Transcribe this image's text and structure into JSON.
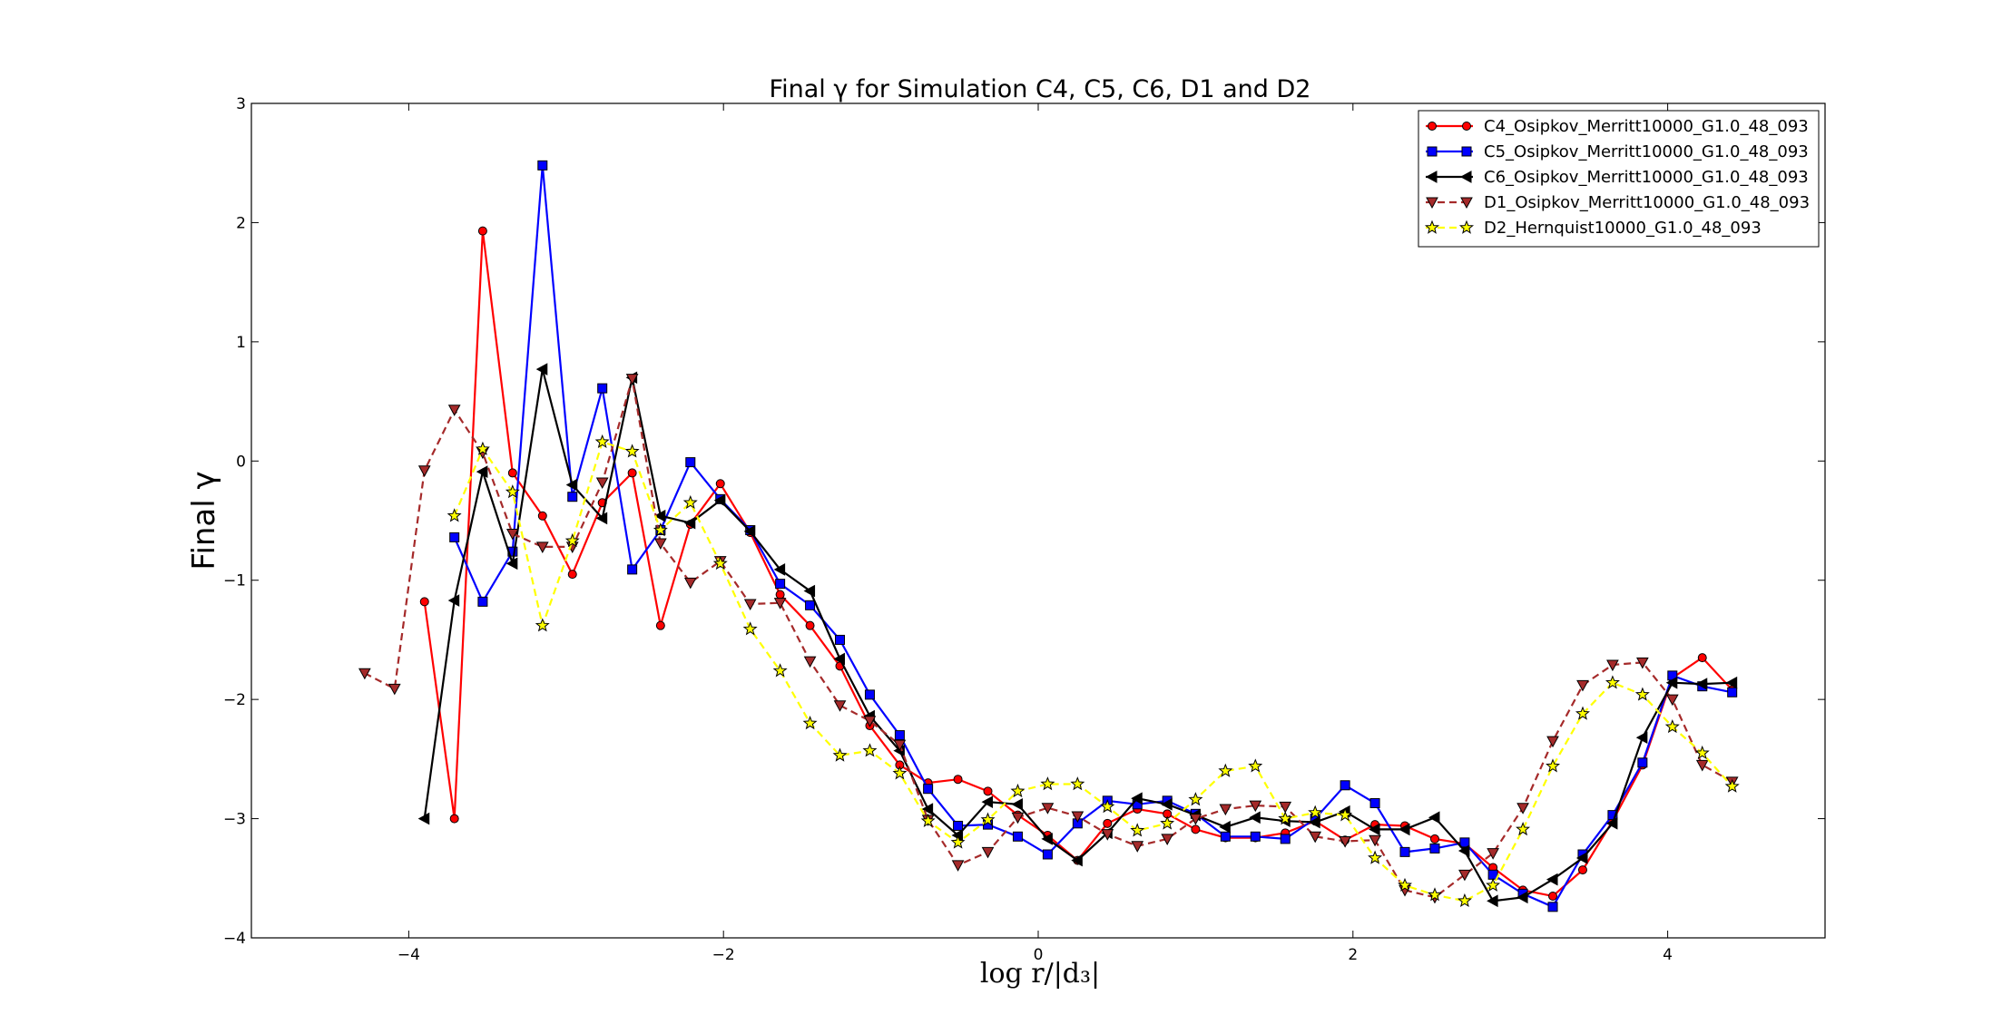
{
  "chart_data": {
    "type": "line",
    "title": "Final γ for Simulation C4, C5, C6, D1 and D2",
    "xlabel": "log r/|d₃|",
    "ylabel": "Final γ",
    "xlim": [
      -5,
      5
    ],
    "ylim": [
      -4,
      3
    ],
    "xticks": [
      -4,
      -2,
      0,
      2,
      4
    ],
    "yticks": [
      -4,
      -3,
      -2,
      -1,
      0,
      1,
      2,
      3
    ],
    "xtick_labels": [
      "−4",
      "−2",
      "0",
      "2",
      "4"
    ],
    "ytick_labels": [
      "−4",
      "−3",
      "−2",
      "−1",
      "0",
      "1",
      "2",
      "3"
    ],
    "legend_position": "top-right",
    "grid": false,
    "series": [
      {
        "name": "C4_Osipkov_Merritt10000_G1.0_48_093",
        "color": "#ff0000",
        "marker": "circle",
        "dash": "solid",
        "x": [
          -3.9,
          -3.71,
          -3.53,
          -3.34,
          -3.15,
          -2.96,
          -2.77,
          -2.58,
          -2.4,
          -2.21,
          -2.02,
          -1.83,
          -1.64,
          -1.45,
          -1.26,
          -1.07,
          -0.88,
          -0.7,
          -0.51,
          -0.32,
          -0.13,
          0.06,
          0.25,
          0.44,
          0.63,
          0.82,
          1.0,
          1.19,
          1.38,
          1.57,
          1.76,
          1.95,
          2.14,
          2.33,
          2.52,
          2.71,
          2.89,
          3.08,
          3.27,
          3.46,
          3.65,
          3.84,
          4.03,
          4.22,
          4.41
        ],
        "y": [
          -1.18,
          -3.0,
          1.93,
          -0.1,
          -0.46,
          -0.95,
          -0.35,
          -0.1,
          -1.38,
          -0.53,
          -0.19,
          -0.6,
          -1.12,
          -1.38,
          -1.72,
          -2.22,
          -2.55,
          -2.7,
          -2.67,
          -2.77,
          -2.97,
          -3.14,
          -3.35,
          -3.04,
          -2.92,
          -2.96,
          -3.09,
          -3.16,
          -3.16,
          -3.12,
          -3.02,
          -3.18,
          -3.05,
          -3.06,
          -3.17,
          -3.21,
          -3.41,
          -3.6,
          -3.65,
          -3.43,
          -3.02,
          -2.55,
          -1.82,
          -1.65,
          -1.92
        ]
      },
      {
        "name": "C5_Osipkov_Merritt10000_G1.0_48_093",
        "color": "#0000ff",
        "marker": "square",
        "dash": "solid",
        "x": [
          -3.71,
          -3.53,
          -3.34,
          -3.15,
          -2.96,
          -2.77,
          -2.58,
          -2.4,
          -2.21,
          -2.02,
          -1.83,
          -1.64,
          -1.45,
          -1.26,
          -1.07,
          -0.88,
          -0.7,
          -0.51,
          -0.32,
          -0.13,
          0.06,
          0.25,
          0.44,
          0.63,
          0.82,
          1.0,
          1.19,
          1.38,
          1.57,
          1.76,
          1.95,
          2.14,
          2.33,
          2.52,
          2.71,
          2.89,
          3.08,
          3.27,
          3.46,
          3.65,
          3.84,
          4.03,
          4.22,
          4.41
        ],
        "y": [
          -0.64,
          -1.18,
          -0.76,
          2.48,
          -0.3,
          0.61,
          -0.91,
          -0.58,
          -0.01,
          -0.32,
          -0.58,
          -1.03,
          -1.21,
          -1.5,
          -1.96,
          -2.3,
          -2.75,
          -3.06,
          -3.05,
          -3.15,
          -3.3,
          -3.04,
          -2.85,
          -2.88,
          -2.85,
          -2.96,
          -3.15,
          -3.15,
          -3.17,
          -3.0,
          -2.72,
          -2.87,
          -3.28,
          -3.25,
          -3.2,
          -3.47,
          -3.63,
          -3.74,
          -3.3,
          -2.97,
          -2.53,
          -1.8,
          -1.89,
          -1.94
        ]
      },
      {
        "name": "C6_Osipkov_Merritt10000_G1.0_48_093",
        "color": "#000000",
        "marker": "triangle-left",
        "dash": "solid",
        "x": [
          -3.9,
          -3.71,
          -3.53,
          -3.34,
          -3.15,
          -2.96,
          -2.77,
          -2.58,
          -2.4,
          -2.21,
          -2.02,
          -1.83,
          -1.64,
          -1.45,
          -1.26,
          -1.07,
          -0.88,
          -0.7,
          -0.51,
          -0.32,
          -0.13,
          0.06,
          0.25,
          0.44,
          0.63,
          0.82,
          1.0,
          1.19,
          1.38,
          1.57,
          1.76,
          1.95,
          2.14,
          2.33,
          2.52,
          2.71,
          2.89,
          3.08,
          3.27,
          3.46,
          3.65,
          3.84,
          4.03,
          4.22,
          4.41
        ],
        "y": [
          -3.0,
          -1.17,
          -0.09,
          -0.86,
          0.77,
          -0.2,
          -0.48,
          0.7,
          -0.46,
          -0.52,
          -0.33,
          -0.59,
          -0.91,
          -1.09,
          -1.66,
          -2.14,
          -2.43,
          -2.92,
          -3.14,
          -2.86,
          -2.88,
          -3.17,
          -3.35,
          -3.12,
          -2.83,
          -2.88,
          -2.97,
          -3.07,
          -2.99,
          -3.02,
          -3.03,
          -2.94,
          -3.09,
          -3.09,
          -2.99,
          -3.27,
          -3.69,
          -3.66,
          -3.51,
          -3.33,
          -3.04,
          -2.32,
          -1.86,
          -1.87,
          -1.86
        ]
      },
      {
        "name": "D1_Osipkov_Merritt10000_G1.0_48_093",
        "color": "#a52a2a",
        "marker": "triangle-down",
        "dash": "dashed",
        "x": [
          -4.28,
          -4.09,
          -3.9,
          -3.71,
          -3.53,
          -3.34,
          -3.15,
          -2.96,
          -2.77,
          -2.58,
          -2.4,
          -2.21,
          -2.02,
          -1.83,
          -1.64,
          -1.45,
          -1.26,
          -1.07,
          -0.88,
          -0.7,
          -0.51,
          -0.32,
          -0.13,
          0.06,
          0.25,
          0.44,
          0.63,
          0.82,
          1.0,
          1.19,
          1.38,
          1.57,
          1.76,
          1.95,
          2.14,
          2.33,
          2.52,
          2.71,
          2.89,
          3.08,
          3.27,
          3.46,
          3.65,
          3.84,
          4.03,
          4.22,
          4.41
        ],
        "y": [
          -1.78,
          -1.91,
          -0.08,
          0.43,
          0.07,
          -0.61,
          -0.72,
          -0.72,
          -0.18,
          0.69,
          -0.69,
          -1.02,
          -0.84,
          -1.2,
          -1.19,
          -1.68,
          -2.05,
          -2.18,
          -2.38,
          -3.01,
          -3.39,
          -3.28,
          -2.99,
          -2.91,
          -2.98,
          -3.13,
          -3.23,
          -3.17,
          -3.0,
          -2.92,
          -2.89,
          -2.9,
          -3.15,
          -3.19,
          -3.18,
          -3.6,
          -3.66,
          -3.47,
          -3.29,
          -2.91,
          -2.35,
          -1.88,
          -1.71,
          -1.69,
          -2.0,
          -2.55,
          -2.69
        ]
      },
      {
        "name": "D2_Hernquist10000_G1.0_48_093",
        "color": "#ffff00",
        "marker": "star",
        "dash": "dashed",
        "x": [
          -3.71,
          -3.53,
          -3.34,
          -3.15,
          -2.96,
          -2.77,
          -2.58,
          -2.4,
          -2.21,
          -2.02,
          -1.83,
          -1.64,
          -1.45,
          -1.26,
          -1.07,
          -0.88,
          -0.7,
          -0.51,
          -0.32,
          -0.13,
          0.06,
          0.25,
          0.44,
          0.63,
          0.82,
          1.0,
          1.19,
          1.38,
          1.57,
          1.76,
          1.95,
          2.14,
          2.33,
          2.52,
          2.71,
          2.89,
          3.08,
          3.27,
          3.46,
          3.65,
          3.84,
          4.03,
          4.22,
          4.41
        ],
        "y": [
          -0.46,
          0.1,
          -0.26,
          -1.38,
          -0.67,
          0.16,
          0.08,
          -0.58,
          -0.35,
          -0.86,
          -1.41,
          -1.76,
          -2.2,
          -2.47,
          -2.43,
          -2.62,
          -3.02,
          -3.2,
          -3.01,
          -2.77,
          -2.71,
          -2.71,
          -2.9,
          -3.1,
          -3.04,
          -2.84,
          -2.6,
          -2.56,
          -3.0,
          -2.95,
          -2.97,
          -3.33,
          -3.56,
          -3.64,
          -3.69,
          -3.56,
          -3.09,
          -2.56,
          -2.12,
          -1.86,
          -1.96,
          -2.23,
          -2.45,
          -2.73
        ]
      }
    ]
  }
}
